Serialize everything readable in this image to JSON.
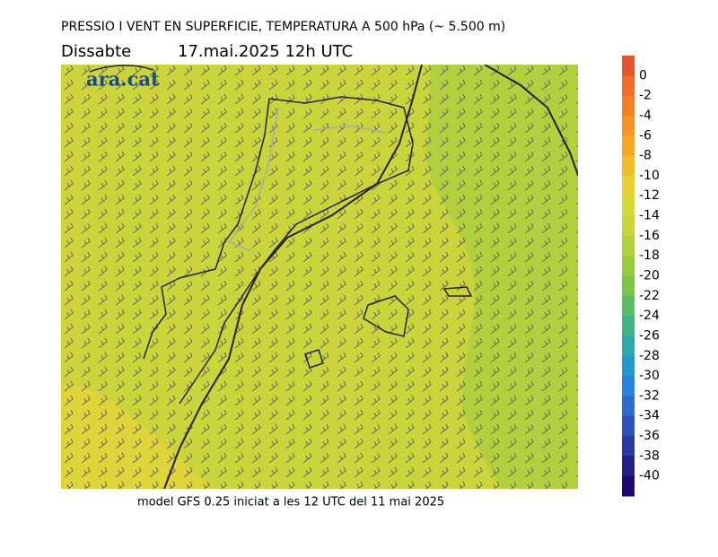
{
  "header": {
    "title": "PRESSIO I VENT EN SUPERFICIE, TEMPERATURA A 500 hPa (~ 5.500 m)",
    "day": "Dissabte",
    "date": "17.mai.2025 12h UTC"
  },
  "logo": "ara.cat",
  "footer": "model GFS 0.25 iniciat a les 12 UTC del 11 mai 2025",
  "colorbar": {
    "ticks": [
      0,
      -2,
      -4,
      -6,
      -8,
      -10,
      -12,
      -14,
      -16,
      -18,
      -20,
      -22,
      -24,
      -26,
      -28,
      -30,
      -32,
      -34,
      -36,
      -38,
      -40
    ],
    "colors": [
      "#e2542a",
      "#f06a28",
      "#f47f25",
      "#f59424",
      "#f6a824",
      "#f2bc2c",
      "#e8d032",
      "#d6d838",
      "#c6d63c",
      "#b0d03e",
      "#98cb42",
      "#7ec448",
      "#5cbb64",
      "#40b384",
      "#2aa8ac",
      "#2497cc",
      "#2a82dd",
      "#2f6acd",
      "#2f52b8",
      "#2a3aa0",
      "#221f88",
      "#1a0a70"
    ]
  }
}
